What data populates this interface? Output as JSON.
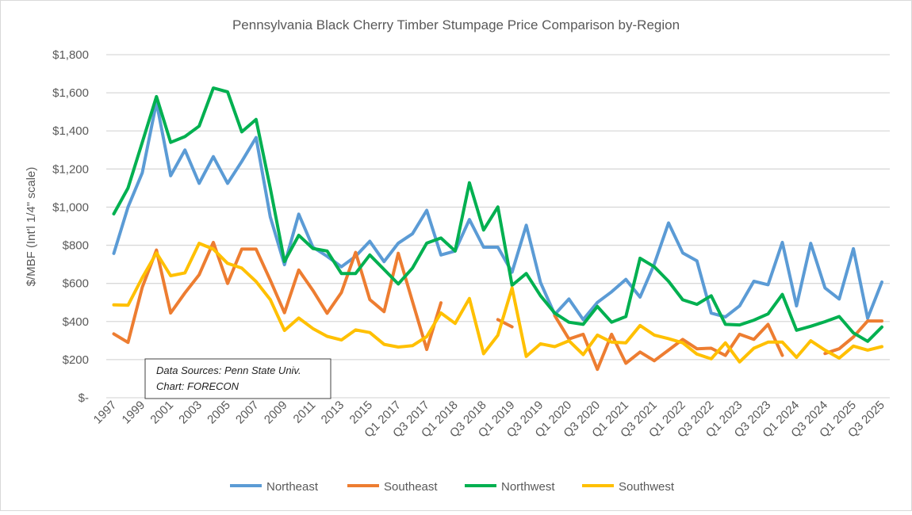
{
  "chart_data": {
    "type": "line",
    "title": "Pennsylvania Black Cherry Timber Stumpage Price Comparison by-Region",
    "xlabel": "",
    "ylabel": "$/MBF (Int'l 1/4\" scale)",
    "ylim": [
      0,
      1800
    ],
    "yticks": [
      0,
      200,
      400,
      600,
      800,
      1000,
      1200,
      1400,
      1600,
      1800
    ],
    "ytick_labels": [
      "$-",
      "$200",
      "$400",
      "$600",
      "$800",
      "$1,000",
      "$1,200",
      "$1,400",
      "$1,600",
      "$1,800"
    ],
    "grid": "horizontal",
    "legend_position": "bottom",
    "categories": [
      "1997",
      "1998",
      "1999",
      "2000",
      "2001",
      "2002",
      "2003",
      "2004",
      "2005",
      "2006",
      "2007",
      "2008",
      "2009",
      "2010",
      "2011",
      "2012",
      "2013",
      "2014",
      "2015",
      "2016",
      "Q1 2017",
      "Q2 2017",
      "Q3 2017",
      "Q4 2017",
      "Q1 2018",
      "Q2 2018",
      "Q3 2018",
      "Q4 2018",
      "Q1 2019",
      "Q2 2019",
      "Q3 2019",
      "Q4 2019",
      "Q1 2020",
      "Q2 2020",
      "Q3 2020",
      "Q4 2020",
      "Q1 2021",
      "Q2 2021",
      "Q3 2021",
      "Q4 2021",
      "Q1 2022",
      "Q2 2022",
      "Q3 2022",
      "Q4 2022",
      "Q1 2023",
      "Q2 2023",
      "Q3 2023",
      "Q4 2023",
      "Q1 2024",
      "Q2 2024",
      "Q3 2024",
      "Q4 2024",
      "Q1 2025",
      "Q2 2025",
      "Q3 2025"
    ],
    "series": [
      {
        "name": "Northeast",
        "color": "#5B9BD5",
        "values": [
          757,
          1000,
          1180,
          1550,
          1165,
          1300,
          1125,
          1265,
          1125,
          1240,
          1365,
          949,
          698,
          963,
          790,
          742,
          687,
          742,
          821,
          714,
          811,
          860,
          983,
          749,
          770,
          935,
          790,
          790,
          659,
          905,
          604,
          437,
          518,
          410,
          500,
          556,
          621,
          528,
          701,
          917,
          760,
          718,
          444,
          424,
          482,
          611,
          593,
          815,
          482,
          810,
          576,
          518,
          782,
          417,
          607
        ]
      },
      {
        "name": "Southeast",
        "color": "#ED7D31",
        "values": [
          335,
          290,
          580,
          775,
          445,
          550,
          645,
          815,
          600,
          780,
          780,
          617,
          446,
          670,
          563,
          443,
          552,
          763,
          515,
          452,
          758,
          505,
          253,
          498,
          null,
          null,
          null,
          410,
          372,
          null,
          null,
          431,
          308,
          333,
          149,
          333,
          181,
          240,
          194,
          250,
          306,
          257,
          260,
          222,
          333,
          306,
          385,
          222,
          null,
          null,
          232,
          257,
          319,
          403,
          403
        ]
      },
      {
        "name": "Northwest",
        "color": "#00B050",
        "values": [
          965,
          1100,
          1340,
          1580,
          1340,
          1370,
          1425,
          1625,
          1605,
          1395,
          1460,
          1100,
          715,
          852,
          783,
          770,
          652,
          652,
          749,
          673,
          597,
          680,
          811,
          838,
          770,
          1128,
          880,
          1001,
          590,
          652,
          535,
          444,
          396,
          385,
          479,
          396,
          426,
          732,
          687,
          611,
          514,
          490,
          535,
          385,
          382,
          407,
          440,
          542,
          354,
          375,
          399,
          426,
          340,
          296,
          371
        ]
      },
      {
        "name": "Southwest",
        "color": "#FFC000",
        "values": [
          487,
          485,
          630,
          760,
          640,
          655,
          810,
          780,
          705,
          680,
          610,
          515,
          353,
          418,
          363,
          322,
          303,
          356,
          342,
          280,
          266,
          273,
          321,
          445,
          390,
          521,
          231,
          328,
          576,
          217,
          283,
          268,
          299,
          226,
          329,
          292,
          288,
          379,
          329,
          310,
          288,
          229,
          204,
          288,
          188,
          260,
          292,
          292,
          212,
          299,
          250,
          208,
          271,
          250,
          268
        ]
      }
    ],
    "annotation": [
      "Data Sources: Penn State Univ.",
      "Chart: FORECON"
    ]
  }
}
